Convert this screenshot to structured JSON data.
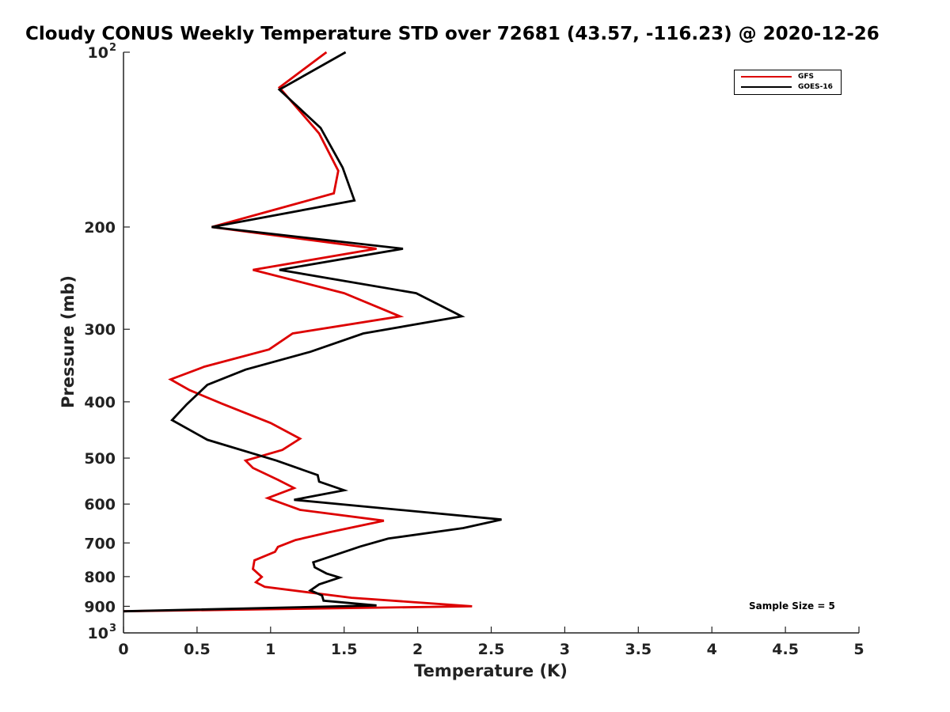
{
  "chart_data": {
    "type": "line",
    "title": "Cloudy CONUS Weekly Temperature STD over 72681 (43.57, -116.23) @ 2020-12-26",
    "xlabel": "Temperature (K)",
    "ylabel": "Pressure (mb)",
    "xlim": [
      0,
      5
    ],
    "ylim": [
      100,
      1000
    ],
    "yscale": "log",
    "y_reversed": true,
    "grid": false,
    "legend_position": "top-right",
    "x_ticks": [
      "0",
      "0.5",
      "1",
      "1.5",
      "2",
      "2.5",
      "3",
      "3.5",
      "4",
      "4.5",
      "5"
    ],
    "y_ticks": [
      {
        "value": 100,
        "label": "10",
        "sup": "2"
      },
      {
        "value": 200,
        "label": "200",
        "sup": ""
      },
      {
        "value": 300,
        "label": "300",
        "sup": ""
      },
      {
        "value": 400,
        "label": "400",
        "sup": ""
      },
      {
        "value": 500,
        "label": "500",
        "sup": ""
      },
      {
        "value": 600,
        "label": "600",
        "sup": ""
      },
      {
        "value": 700,
        "label": "700",
        "sup": ""
      },
      {
        "value": 800,
        "label": "800",
        "sup": ""
      },
      {
        "value": 900,
        "label": "900",
        "sup": ""
      },
      {
        "value": 1000,
        "label": "10",
        "sup": "3"
      }
    ],
    "annotation": "Sample Size = 5",
    "series": [
      {
        "name": "GFS",
        "color": "#dd0000",
        "points": [
          [
            1.38,
            100
          ],
          [
            1.06,
            115
          ],
          [
            1.33,
            138
          ],
          [
            1.46,
            160
          ],
          [
            1.43,
            175
          ],
          [
            0.6,
            200
          ],
          [
            1.72,
            218
          ],
          [
            0.88,
            237
          ],
          [
            1.5,
            260
          ],
          [
            1.88,
            285
          ],
          [
            1.15,
            305
          ],
          [
            0.99,
            325
          ],
          [
            0.55,
            348
          ],
          [
            0.32,
            366
          ],
          [
            0.45,
            382
          ],
          [
            0.67,
            403
          ],
          [
            1.0,
            435
          ],
          [
            1.2,
            463
          ],
          [
            1.08,
            484
          ],
          [
            0.83,
            505
          ],
          [
            0.88,
            520
          ],
          [
            1.05,
            545
          ],
          [
            1.16,
            563
          ],
          [
            0.98,
            586
          ],
          [
            1.2,
            614
          ],
          [
            1.77,
            641
          ],
          [
            1.4,
            671
          ],
          [
            1.17,
            692
          ],
          [
            1.05,
            711
          ],
          [
            1.03,
            725
          ],
          [
            0.89,
            750
          ],
          [
            0.88,
            776
          ],
          [
            0.94,
            801
          ],
          [
            0.9,
            818
          ],
          [
            0.96,
            833
          ],
          [
            1.55,
            870
          ],
          [
            2.37,
            900
          ],
          [
            0.0,
            918
          ]
        ]
      },
      {
        "name": "GOES-16",
        "color": "#000000",
        "points": [
          [
            1.51,
            100
          ],
          [
            1.06,
            116
          ],
          [
            1.34,
            135
          ],
          [
            1.49,
            158
          ],
          [
            1.57,
            180
          ],
          [
            0.6,
            200
          ],
          [
            1.9,
            218
          ],
          [
            1.06,
            237
          ],
          [
            1.99,
            260
          ],
          [
            2.3,
            285
          ],
          [
            1.63,
            305
          ],
          [
            1.27,
            328
          ],
          [
            0.83,
            352
          ],
          [
            0.57,
            374
          ],
          [
            0.43,
            404
          ],
          [
            0.33,
            430
          ],
          [
            0.57,
            465
          ],
          [
            1.04,
            505
          ],
          [
            1.32,
            535
          ],
          [
            1.33,
            549
          ],
          [
            1.5,
            568
          ],
          [
            1.16,
            590
          ],
          [
            2.57,
            638
          ],
          [
            2.31,
            660
          ],
          [
            1.8,
            688
          ],
          [
            1.61,
            710
          ],
          [
            1.42,
            737
          ],
          [
            1.29,
            756
          ],
          [
            1.3,
            771
          ],
          [
            1.38,
            790
          ],
          [
            1.47,
            803
          ],
          [
            1.33,
            825
          ],
          [
            1.27,
            845
          ],
          [
            1.35,
            862
          ],
          [
            1.36,
            880
          ],
          [
            1.72,
            897
          ],
          [
            0.0,
            918
          ]
        ]
      }
    ]
  }
}
